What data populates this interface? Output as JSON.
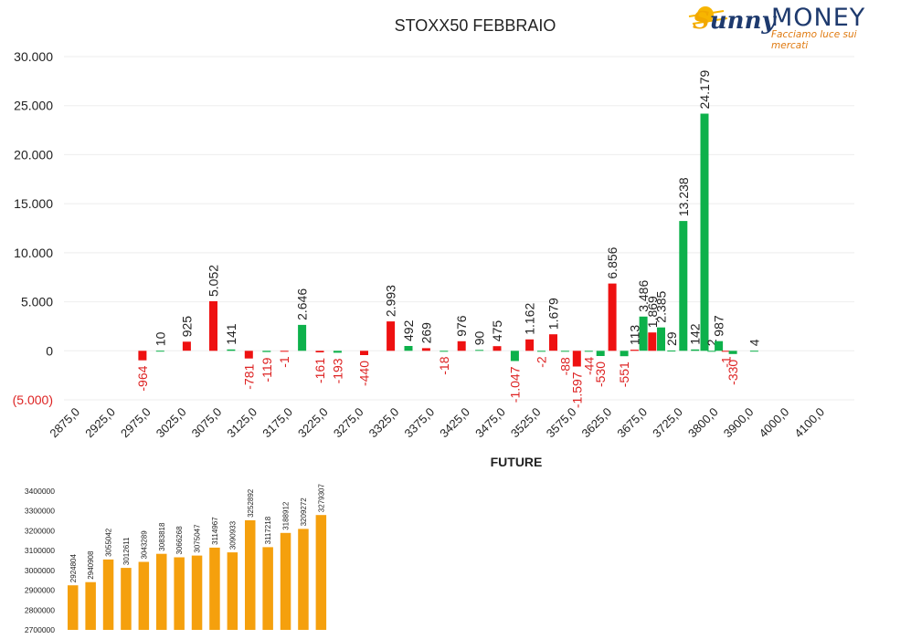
{
  "logo": {
    "brand_script_first": "S",
    "brand_script_rest": "unny",
    "brand_word": "MONEY",
    "tagline": "Facciamo luce sui mercati",
    "colors": {
      "sun": "#f2a800",
      "navy": "#1e3a6e",
      "orange": "#e07a10"
    }
  },
  "chart_data": [
    {
      "type": "bar",
      "title": "STOXX50 FEBBRAIO",
      "xlabel": "FUTURE",
      "ylabel": "",
      "ylim": [
        -5000,
        30000
      ],
      "y_ticks": [
        30000,
        25000,
        20000,
        15000,
        10000,
        5000,
        0,
        -5000
      ],
      "y_tick_labels": [
        "30.000",
        "25.000",
        "20.000",
        "15.000",
        "10.000",
        "5.000",
        "0",
        "(5.000)"
      ],
      "grid": true,
      "x_tick_labels": [
        "2875,0",
        "2925,0",
        "2975,0",
        "3025,0",
        "3075,0",
        "3125,0",
        "3175,0",
        "3225,0",
        "3275,0",
        "3325,0",
        "3375,0",
        "3425,0",
        "3475,0",
        "3525,0",
        "3575,0",
        "3625,0",
        "3675,0",
        "3725,0",
        "3800,0",
        "3900,0",
        "4000,0",
        "4100,0"
      ],
      "colors": {
        "put": "#ee1111",
        "call": "#0db14b",
        "label_negative": "#dd2222"
      },
      "bars": [
        {
          "strike": "2975,0",
          "series": "put",
          "value": -964,
          "label": "-964"
        },
        {
          "strike": "2975,0",
          "series": "call",
          "value": 10,
          "label": "10"
        },
        {
          "strike": "3025,0",
          "series": "put",
          "value": 925,
          "label": "925"
        },
        {
          "strike": "3075,0",
          "series": "put",
          "value": 5052,
          "label": "5.052"
        },
        {
          "strike": "3075,0",
          "series": "call",
          "value": 141,
          "label": "141"
        },
        {
          "strike": "3125,0",
          "series": "put",
          "value": -781,
          "label": "-781"
        },
        {
          "strike": "3125,0",
          "series": "call",
          "value": -119,
          "label": "-119"
        },
        {
          "strike": "3175,0",
          "series": "put",
          "value": -1,
          "label": "-1"
        },
        {
          "strike": "3175,0",
          "series": "call",
          "value": 2646,
          "label": "2.646"
        },
        {
          "strike": "3225,0",
          "series": "put",
          "value": -161,
          "label": "-161"
        },
        {
          "strike": "3225,0",
          "series": "call",
          "value": -193,
          "label": "-193"
        },
        {
          "strike": "3275,0",
          "series": "put",
          "value": -440,
          "label": "-440"
        },
        {
          "strike": "3325,0",
          "series": "put",
          "value": 2993,
          "label": "2.993"
        },
        {
          "strike": "3325,0",
          "series": "call",
          "value": 492,
          "label": "492"
        },
        {
          "strike": "3375,0",
          "series": "put",
          "value": 269,
          "label": "269"
        },
        {
          "strike": "3375,0",
          "series": "call",
          "value": -18,
          "label": "-18"
        },
        {
          "strike": "3425,0",
          "series": "put",
          "value": 976,
          "label": "976"
        },
        {
          "strike": "3425,0",
          "series": "call",
          "value": 90,
          "label": "90"
        },
        {
          "strike": "3475,0",
          "series": "put",
          "value": 475,
          "label": "475"
        },
        {
          "strike": "3475,0",
          "series": "call",
          "value": -1047,
          "label": "-1.047"
        },
        {
          "strike": "3525,0",
          "series": "put",
          "value": 1162,
          "label": "1.162"
        },
        {
          "strike": "3525,0",
          "series": "call",
          "value": -2,
          "label": "-2"
        },
        {
          "strike": "3525,0",
          "series": "put2",
          "value": 1679,
          "label": "1.679"
        },
        {
          "strike": "3575,0",
          "series": "call",
          "value": -88,
          "label": "-88"
        },
        {
          "strike": "3575,0",
          "series": "put",
          "value": -1597,
          "label": "-1.597"
        },
        {
          "strike": "3575,0",
          "series": "call2",
          "value": -44,
          "label": "-44"
        },
        {
          "strike": "3625,0",
          "series": "call",
          "value": -530,
          "label": "-530"
        },
        {
          "strike": "3625,0",
          "series": "put",
          "value": 6856,
          "label": "6.856"
        },
        {
          "strike": "3625,0",
          "series": "call2",
          "value": -551,
          "label": "-551"
        },
        {
          "strike": "3675,0",
          "series": "put",
          "value": 113,
          "label": "113"
        },
        {
          "strike": "3675,0",
          "series": "call",
          "value": 3486,
          "label": "3.486"
        },
        {
          "strike": "3675,0",
          "series": "put2",
          "value": 1869,
          "label": "1.869"
        },
        {
          "strike": "3675,0",
          "series": "call2",
          "value": 2385,
          "label": "2.385"
        },
        {
          "strike": "3725,0",
          "series": "call",
          "value": 29,
          "label": "29"
        },
        {
          "strike": "3725,0",
          "series": "call2",
          "value": 13238,
          "label": "13.238"
        },
        {
          "strike": "3725,0",
          "series": "call3",
          "value": 142,
          "label": "142"
        },
        {
          "strike": "3800,0",
          "series": "call",
          "value": 24179,
          "label": "24.179"
        },
        {
          "strike": "3800,0",
          "series": "call2",
          "value": 2,
          "label": "2"
        },
        {
          "strike": "3800,0",
          "series": "call3",
          "value": 987,
          "label": "987"
        },
        {
          "strike": "3800,0",
          "series": "put",
          "value": -1,
          "label": "-1"
        },
        {
          "strike": "3800,0",
          "series": "call4",
          "value": -330,
          "label": "-330"
        },
        {
          "strike": "3900,0",
          "series": "call",
          "value": 4,
          "label": "4"
        }
      ]
    },
    {
      "type": "bar",
      "title": "",
      "xlabel": "",
      "ylabel": "",
      "ylim": [
        2700000,
        3400000
      ],
      "y_ticks": [
        3400000,
        3300000,
        3200000,
        3100000,
        3000000,
        2900000,
        2800000,
        2700000
      ],
      "y_tick_labels": [
        "3400000",
        "3300000",
        "3200000",
        "3100000",
        "3000000",
        "2900000",
        "2800000",
        "2700000"
      ],
      "color": "#f5a00d",
      "values": [
        2924804,
        2940908,
        3055042,
        3012611,
        3043289,
        3083818,
        3066268,
        3075047,
        3114967,
        3090933,
        3252892,
        3117218,
        3188912,
        3209272,
        3279307
      ],
      "value_labels": [
        "2924804",
        "2940908",
        "3055042",
        "3012611",
        "3043289",
        "3083818",
        "3066268",
        "3075047",
        "3114967",
        "3090933",
        "3252892",
        "3117218",
        "3188912",
        "3209272",
        "3279307"
      ]
    }
  ]
}
